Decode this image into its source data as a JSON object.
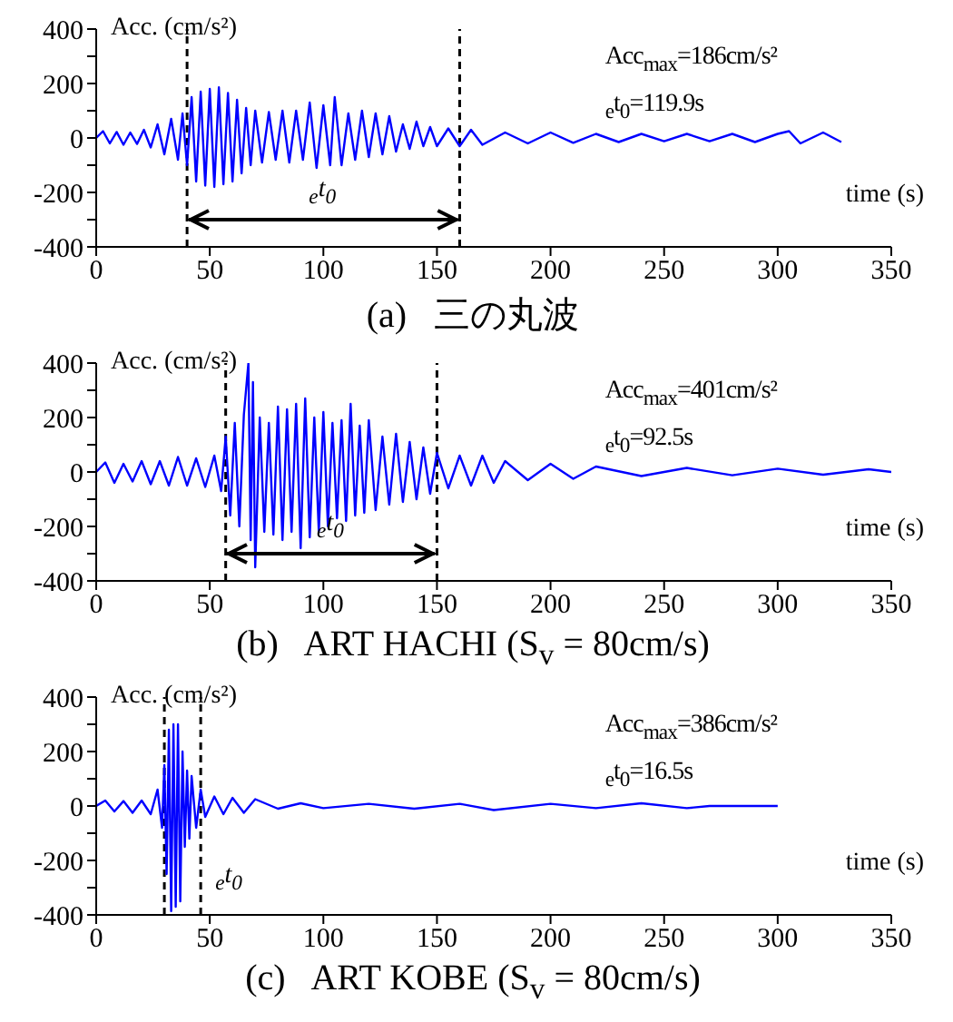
{
  "chart_data": [
    {
      "type": "line",
      "title": "(a)   三の丸波",
      "xlabel": "time (s)",
      "ylabel": "Acc. (cm/s²)",
      "color": "#0000ff",
      "xlim": [
        0,
        350
      ],
      "xticks": [
        0,
        50,
        100,
        150,
        200,
        250,
        300,
        350
      ],
      "ylim": [
        -400,
        400
      ],
      "yticks": [
        -400,
        {
          "value": -300,
          "label": null
        },
        -200,
        {
          "value": -100,
          "label": null
        },
        0,
        {
          "value": 100,
          "label": null
        },
        200,
        {
          "value": 300,
          "label": null
        },
        400
      ],
      "x": [
        0,
        3,
        6,
        9,
        12,
        15,
        18,
        21,
        24,
        27,
        30,
        33,
        36,
        38,
        40,
        42,
        44,
        46,
        48,
        50,
        52,
        54,
        56,
        58,
        60,
        62,
        64,
        66,
        68,
        70,
        73,
        76,
        79,
        82,
        85,
        88,
        91,
        94,
        97,
        100,
        103,
        105,
        108,
        111,
        114,
        117,
        120,
        123,
        126,
        129,
        132,
        135,
        138,
        141,
        144,
        147,
        150,
        155,
        160,
        165,
        170,
        180,
        190,
        200,
        210,
        220,
        230,
        240,
        250,
        260,
        270,
        280,
        290,
        300,
        305,
        310,
        320,
        328
      ],
      "values": [
        0,
        25,
        -20,
        22,
        -25,
        20,
        -22,
        30,
        -35,
        50,
        -60,
        70,
        -80,
        90,
        -100,
        150,
        -160,
        170,
        -175,
        180,
        -180,
        186,
        -170,
        165,
        -160,
        140,
        -130,
        110,
        -100,
        100,
        -90,
        95,
        -80,
        100,
        -90,
        100,
        -80,
        130,
        -110,
        120,
        -100,
        150,
        -100,
        90,
        -80,
        100,
        -70,
        90,
        -60,
        80,
        -50,
        50,
        -40,
        60,
        -30,
        40,
        -30,
        35,
        -30,
        30,
        -25,
        20,
        -20,
        20,
        -18,
        15,
        -15,
        15,
        -12,
        15,
        -12,
        15,
        -15,
        15,
        25,
        -20,
        20,
        -15
      ],
      "ref_lines": [
        {
          "axis": "x",
          "value": 40,
          "color": "#000000",
          "line_style": "dashed"
        },
        {
          "axis": "x",
          "value": 160,
          "color": "#000000",
          "line_style": "dashed"
        }
      ],
      "annotations": [
        "Acc$_{max}$=186cm/s²",
        "$_{e}$t$_{0}$=119.9s",
        "$_{e}$t$_{0}$"
      ]
    },
    {
      "type": "line",
      "title": "(b)   ART HACHI (S$_{v}$ = 80cm/s)",
      "xlabel": "time (s)",
      "ylabel": "Acc. (cm/s²)",
      "color": "#0000ff",
      "xlim": [
        0,
        350
      ],
      "xticks": [
        0,
        50,
        100,
        150,
        200,
        250,
        300,
        350
      ],
      "ylim": [
        -400,
        400
      ],
      "yticks": [
        -400,
        {
          "value": -300,
          "label": null
        },
        -200,
        {
          "value": -100,
          "label": null
        },
        0,
        {
          "value": 100,
          "label": null
        },
        200,
        {
          "value": 300,
          "label": null
        },
        400
      ],
      "x": [
        0,
        4,
        8,
        12,
        16,
        20,
        24,
        28,
        32,
        36,
        40,
        44,
        48,
        52,
        55,
        57,
        59,
        61,
        63,
        65,
        67,
        68,
        69,
        70,
        72,
        74,
        76,
        78,
        80,
        82,
        84,
        86,
        88,
        90,
        92,
        94,
        96,
        98,
        100,
        102,
        104,
        106,
        108,
        110,
        112,
        114,
        116,
        118,
        120,
        123,
        126,
        129,
        132,
        135,
        138,
        141,
        144,
        147,
        150,
        155,
        160,
        165,
        170,
        175,
        180,
        190,
        200,
        210,
        220,
        240,
        260,
        280,
        300,
        320,
        340,
        350
      ],
      "values": [
        0,
        35,
        -40,
        30,
        -35,
        40,
        -45,
        40,
        -50,
        55,
        -50,
        50,
        -55,
        60,
        -70,
        130,
        -160,
        180,
        -200,
        210,
        400,
        -250,
        330,
        -350,
        200,
        -220,
        180,
        -230,
        240,
        -250,
        230,
        -220,
        250,
        -280,
        270,
        -240,
        200,
        -220,
        220,
        -200,
        180,
        -170,
        190,
        -180,
        250,
        -160,
        170,
        -150,
        190,
        -140,
        130,
        -120,
        140,
        -110,
        110,
        -100,
        90,
        -80,
        70,
        -60,
        60,
        -50,
        60,
        -40,
        40,
        -30,
        30,
        -25,
        20,
        -15,
        15,
        -12,
        12,
        -10,
        10,
        0
      ],
      "ref_lines": [
        {
          "axis": "x",
          "value": 57,
          "color": "#000000",
          "line_style": "dashed"
        },
        {
          "axis": "x",
          "value": 150,
          "color": "#000000",
          "line_style": "dashed"
        }
      ],
      "annotations": [
        "Acc$_{max}$=401cm/s²",
        "$_{e}$t$_{0}$=92.5s",
        "$_{e}$t$_{0}$"
      ]
    },
    {
      "type": "line",
      "title": "(c)   ART KOBE (S$_{v}$ = 80cm/s)",
      "xlabel": "time (s)",
      "ylabel": "Acc. (cm/s²)",
      "color": "#0000ff",
      "xlim": [
        0,
        350
      ],
      "xticks": [
        0,
        50,
        100,
        150,
        200,
        250,
        300,
        350
      ],
      "ylim": [
        -400,
        400
      ],
      "yticks": [
        -400,
        {
          "value": -300,
          "label": null
        },
        -200,
        {
          "value": -100,
          "label": null
        },
        0,
        {
          "value": 100,
          "label": null
        },
        200,
        {
          "value": 300,
          "label": null
        },
        400
      ],
      "x": [
        0,
        4,
        8,
        12,
        16,
        20,
        24,
        27,
        29,
        30,
        31,
        32,
        33,
        34,
        35,
        36,
        37,
        38,
        39,
        40,
        41,
        42,
        44,
        46,
        48,
        52,
        56,
        60,
        65,
        70,
        80,
        90,
        100,
        120,
        140,
        160,
        175,
        200,
        220,
        240,
        260,
        270,
        300
      ],
      "values": [
        0,
        20,
        -20,
        18,
        -25,
        20,
        -30,
        60,
        -80,
        150,
        -250,
        280,
        -386,
        300,
        -370,
        300,
        -350,
        200,
        -150,
        130,
        -120,
        110,
        -80,
        60,
        -40,
        35,
        -30,
        30,
        -25,
        25,
        -10,
        10,
        -8,
        8,
        -10,
        8,
        -15,
        8,
        -8,
        10,
        -8,
        0,
        0
      ],
      "ref_lines": [
        {
          "axis": "x",
          "value": 30,
          "color": "#000000",
          "line_style": "dashed"
        },
        {
          "axis": "x",
          "value": 46,
          "color": "#000000",
          "line_style": "dashed"
        }
      ],
      "annotations": [
        "Acc$_{max}$=386cm/s²",
        "$_{e}$t$_{0}$=16.5s",
        "$_{e}$t$_{0}$"
      ]
    }
  ]
}
